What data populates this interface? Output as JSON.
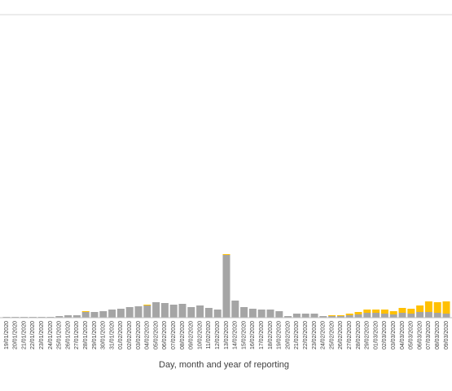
{
  "chart_data": {
    "type": "stacked-bar",
    "x_label": "Day, month and year of reporting",
    "categories": [
      "19/01/2020",
      "20/01/2020",
      "21/01/2020",
      "22/01/2020",
      "23/01/2020",
      "24/01/2020",
      "25/01/2020",
      "26/01/2020",
      "27/01/2020",
      "28/01/2020",
      "29/01/2020",
      "30/01/2020",
      "31/01/2020",
      "01/02/2020",
      "02/02/2020",
      "03/02/2020",
      "04/02/2020",
      "05/02/2020",
      "06/02/2020",
      "07/02/2020",
      "08/02/2020",
      "09/02/2020",
      "10/02/2020",
      "11/02/2020",
      "12/02/2020",
      "13/02/2020",
      "14/02/2020",
      "15/02/2020",
      "16/02/2020",
      "17/02/2020",
      "18/02/2020",
      "19/02/2020",
      "20/02/2020",
      "21/02/2020",
      "22/02/2020",
      "23/02/2020",
      "24/02/2020",
      "25/02/2020",
      "26/02/2020",
      "27/02/2020",
      "28/02/2020",
      "29/02/2020",
      "01/03/2020",
      "02/03/2020",
      "03/03/2020",
      "04/03/2020",
      "05/03/2020",
      "06/03/2020",
      "07/03/2020",
      "08/03/2020",
      "09/03/2020"
    ],
    "series": [
      {
        "color": "#a5a5a5",
        "values": [
          200,
          200,
          200,
          200,
          200,
          200,
          400,
          600,
          600,
          1400,
          1400,
          1600,
          2000,
          2200,
          2600,
          2800,
          3000,
          3800,
          3600,
          3200,
          3400,
          2600,
          3000,
          2400,
          2000,
          15400,
          4200,
          2600,
          2200,
          2000,
          2000,
          1600,
          400,
          1000,
          1000,
          1000,
          400,
          400,
          400,
          600,
          800,
          1200,
          1200,
          1000,
          800,
          1200,
          1000,
          1400,
          1400,
          1200,
          1000
        ]
      },
      {
        "color": "#ffc000",
        "values": [
          0,
          0,
          0,
          0,
          0,
          0,
          0,
          0,
          0,
          200,
          0,
          0,
          0,
          0,
          0,
          0,
          200,
          0,
          0,
          0,
          0,
          0,
          0,
          0,
          0,
          200,
          0,
          0,
          0,
          0,
          0,
          0,
          0,
          0,
          0,
          0,
          0,
          200,
          200,
          400,
          600,
          800,
          800,
          1000,
          800,
          1200,
          1200,
          1600,
          2600,
          2600,
          3000
        ]
      }
    ],
    "ylim": [
      0,
      74400
    ]
  }
}
